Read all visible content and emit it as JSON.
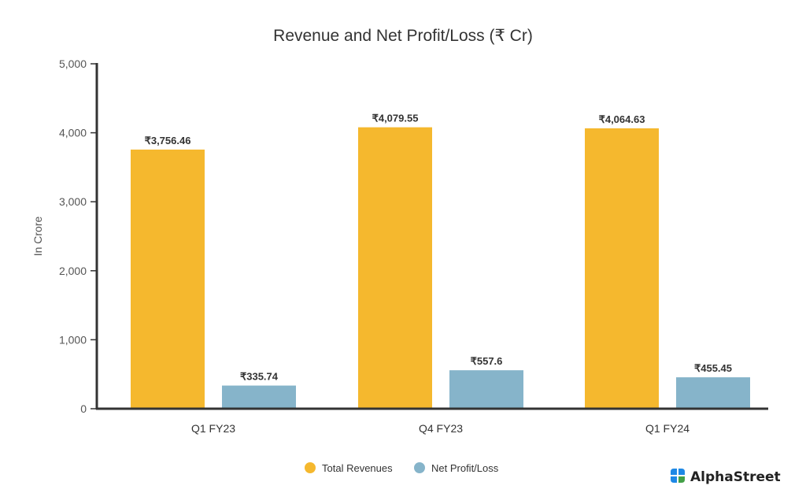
{
  "chart_data": {
    "type": "bar",
    "title": "Revenue and Net Profit/Loss (₹ Cr)",
    "xlabel": "",
    "ylabel": "In Crore",
    "ylim": [
      0,
      5000
    ],
    "yticks": [
      0,
      1000,
      2000,
      3000,
      4000,
      5000
    ],
    "ytick_labels": [
      "0",
      "1,000",
      "2,000",
      "3,000",
      "4,000",
      "5,000"
    ],
    "grid": false,
    "legend_position": "bottom-center",
    "categories": [
      "Q1 FY23",
      "Q4 FY23",
      "Q1 FY24"
    ],
    "series": [
      {
        "name": "Total Revenues",
        "color": "#F5B82E",
        "values": [
          3756.46,
          4079.55,
          4064.63
        ],
        "labels": [
          "₹3,756.46",
          "₹4,079.55",
          "₹4,064.63"
        ]
      },
      {
        "name": "Net Profit/Loss",
        "color": "#86B4CA",
        "values": [
          335.74,
          557.6,
          455.45
        ],
        "labels": [
          "₹335.74",
          "₹557.6",
          "₹455.45"
        ]
      }
    ]
  },
  "branding": {
    "logo_text": "AlphaStreet",
    "logo_colors": [
      "#1E88E5",
      "#1E88E5",
      "#1E88E5",
      "#43A047"
    ]
  },
  "colors": {
    "axis": "#333333",
    "text": "#333333"
  }
}
